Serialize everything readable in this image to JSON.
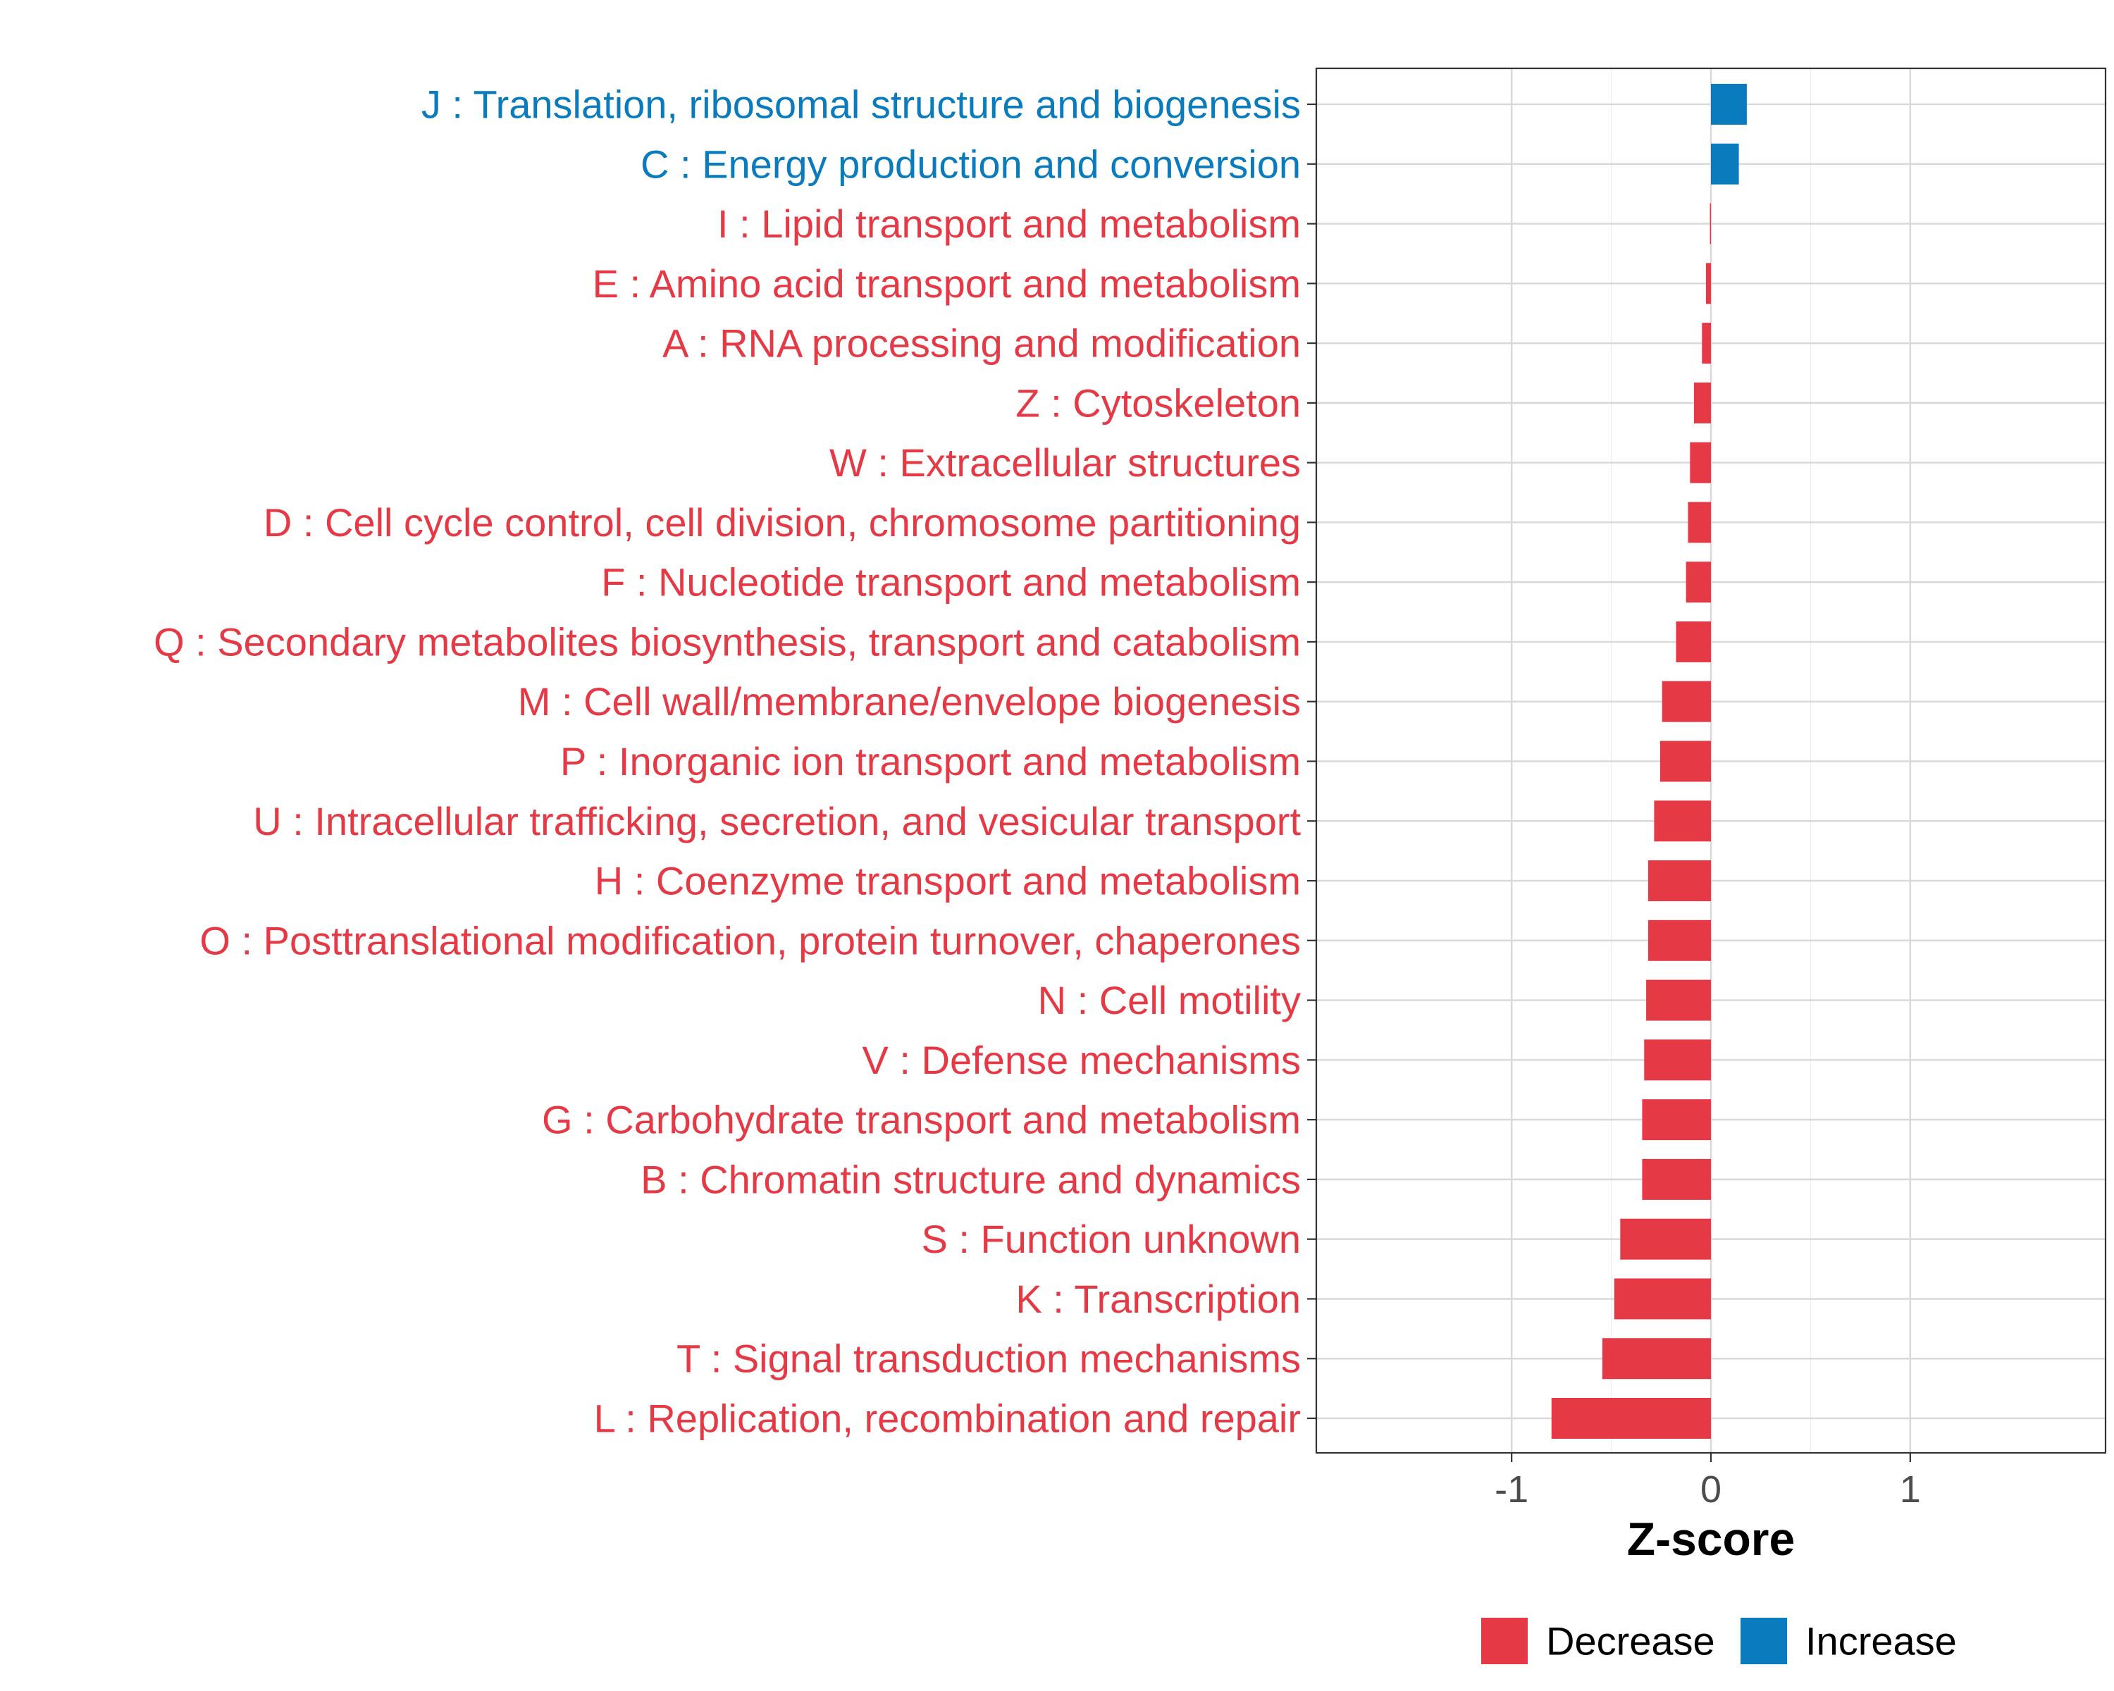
{
  "chart_data": {
    "type": "bar",
    "orientation": "horizontal",
    "categories": [
      "J : Translation, ribosomal structure and biogenesis",
      "C : Energy production and conversion",
      "I : Lipid transport and metabolism",
      "E : Amino acid transport and metabolism",
      "A : RNA processing and modification",
      "Z : Cytoskeleton",
      "W : Extracellular structures",
      "D : Cell cycle control, cell division, chromosome partitioning",
      "F : Nucleotide transport and metabolism",
      "Q : Secondary metabolites biosynthesis, transport and catabolism",
      "M : Cell wall/membrane/envelope biogenesis",
      "P : Inorganic ion transport and metabolism",
      "U : Intracellular trafficking, secretion, and vesicular transport",
      "H : Coenzyme transport and metabolism",
      "O : Posttranslational modification, protein turnover, chaperones",
      "N : Cell motility",
      "V : Defense mechanisms",
      "G : Carbohydrate transport and metabolism",
      "B : Chromatin structure and dynamics",
      "S : Function unknown",
      "K : Transcription",
      "T : Signal transduction mechanisms",
      "L : Replication, recombination and repair"
    ],
    "values": [
      0.18,
      0.14,
      -0.005,
      -0.025,
      -0.045,
      -0.085,
      -0.105,
      -0.115,
      -0.125,
      -0.175,
      -0.245,
      -0.255,
      -0.285,
      -0.315,
      -0.315,
      -0.325,
      -0.335,
      -0.345,
      -0.345,
      -0.455,
      -0.485,
      -0.545,
      -0.8
    ],
    "groups": [
      "Increase",
      "Increase",
      "Decrease",
      "Decrease",
      "Decrease",
      "Decrease",
      "Decrease",
      "Decrease",
      "Decrease",
      "Decrease",
      "Decrease",
      "Decrease",
      "Decrease",
      "Decrease",
      "Decrease",
      "Decrease",
      "Decrease",
      "Decrease",
      "Decrease",
      "Decrease",
      "Decrease",
      "Decrease",
      "Decrease"
    ],
    "xlabel": "Z-score",
    "ylabel": "",
    "xlim": [
      -1.98,
      1.98
    ],
    "xticks": [
      -1,
      0,
      1
    ],
    "xtick_labels": [
      "-1",
      "0",
      "1"
    ],
    "grid": true,
    "legend": {
      "position": "bottom",
      "items": [
        {
          "label": "Decrease",
          "color": "#e63946"
        },
        {
          "label": "Increase",
          "color": "#0a7bbd"
        }
      ]
    },
    "colors": {
      "Decrease": "#e63946",
      "Increase": "#0a7bbd"
    }
  }
}
